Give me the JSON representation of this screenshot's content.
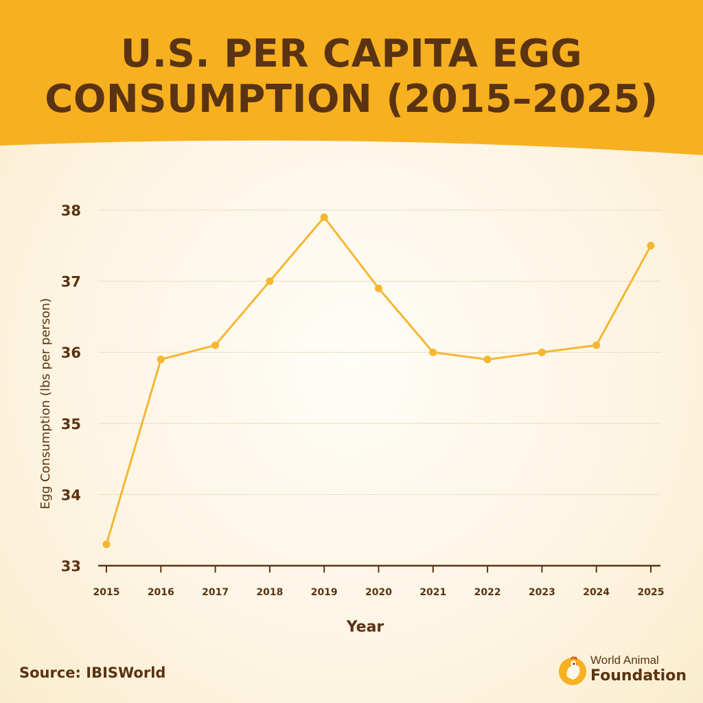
{
  "title": {
    "line1": "U.S. PER CAPITA EGG",
    "line2": "CONSUMPTION (2015–2025)"
  },
  "colors": {
    "header": "#f7b020",
    "line": "#f5b630",
    "text": "#5a3312",
    "grid": "#e8dcc4"
  },
  "chart_data": {
    "type": "line",
    "title": "U.S. PER CAPITA EGG CONSUMPTION (2015–2025)",
    "xlabel": "Year",
    "ylabel": "Egg Consumption (lbs per person)",
    "x": [
      "2015",
      "2016",
      "2017",
      "2018",
      "2019",
      "2020",
      "2021",
      "2022",
      "2023",
      "2024",
      "2025"
    ],
    "series": [
      {
        "values": [
          33.3,
          35.9,
          36.1,
          37.0,
          37.9,
          36.9,
          36.0,
          35.9,
          36.0,
          36.1,
          37.5
        ]
      }
    ],
    "ylim": [
      33,
      38
    ],
    "yticks": [
      "33",
      "34",
      "35",
      "36",
      "37",
      "38"
    ],
    "grid": true,
    "legend": "none"
  },
  "footer": {
    "source": "Source: IBISWorld",
    "brand_line1": "World Animal",
    "brand_line2": "Foundation",
    "brand_icon": "chicken-logo-icon"
  }
}
